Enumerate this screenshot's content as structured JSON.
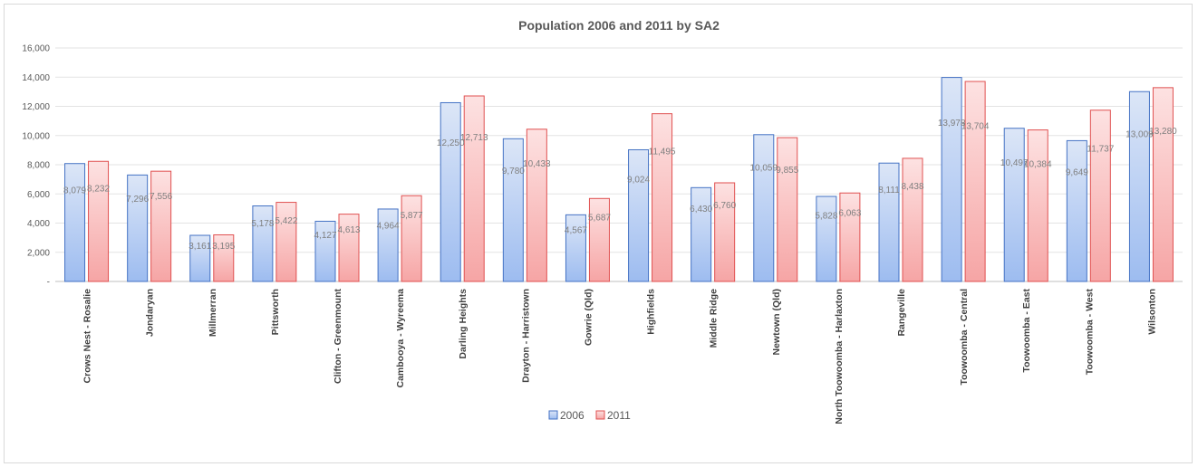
{
  "chart_data": {
    "type": "bar",
    "title": "Population 2006 and 2011 by SA2",
    "xlabel": "",
    "ylabel": "",
    "ylim": [
      0,
      16000
    ],
    "yticks": [
      0,
      2000,
      4000,
      6000,
      8000,
      10000,
      12000,
      14000,
      16000
    ],
    "ytick_labels": [
      "-",
      "2,000",
      "4,000",
      "6,000",
      "8,000",
      "10,000",
      "12,000",
      "14,000",
      "16,000"
    ],
    "grid": true,
    "legend": "bottom",
    "categories": [
      "Crows Nest - Rosalie",
      "Jondaryan",
      "Millmerran",
      "Pittsworth",
      "Clifton - Greenmount",
      "Cambooya - Wyreema",
      "Darling Heights",
      "Drayton - Harristown",
      "Gowrie (Qld)",
      "Highfields",
      "Middle Ridge",
      "Newtown (Qld)",
      "North Toowoomba - Harlaxton",
      "Rangeville",
      "Toowoomba - Central",
      "Toowoomba - East",
      "Toowoomba - West",
      "Wilsonton"
    ],
    "series": [
      {
        "name": "2006",
        "color": "#4472c4",
        "fill_top": "#dce6f7",
        "fill_bottom": "#9dbcf0",
        "values": [
          8079,
          7296,
          3161,
          5178,
          4127,
          4964,
          12250,
          9780,
          4567,
          9024,
          6430,
          10059,
          5828,
          8111,
          13978,
          10497,
          9649,
          13009
        ],
        "labels": [
          "8,079",
          "7,296",
          "3,161",
          "5,178",
          "4,127",
          "4,964",
          "12,250",
          "9,780",
          "4,567",
          "9,024",
          "6,430",
          "10,059",
          "5,828",
          "8,111",
          "13,978",
          "10,497",
          "9,649",
          "13,009"
        ]
      },
      {
        "name": "2011",
        "color": "#e05050",
        "fill_top": "#fde2e2",
        "fill_bottom": "#f6a5a5",
        "values": [
          8232,
          7556,
          3195,
          5422,
          4613,
          5877,
          12713,
          10433,
          5687,
          11495,
          6760,
          9855,
          6063,
          8438,
          13704,
          10384,
          11737,
          13280
        ],
        "labels": [
          "8,232",
          "7,556",
          "3,195",
          "5,422",
          "4,613",
          "5,877",
          "12,713",
          "10,433",
          "5,687",
          "11,495",
          "6,760",
          "9,855",
          "6,063",
          "8,438",
          "13,704",
          "10,384",
          "11,737",
          "13,280"
        ]
      }
    ]
  }
}
